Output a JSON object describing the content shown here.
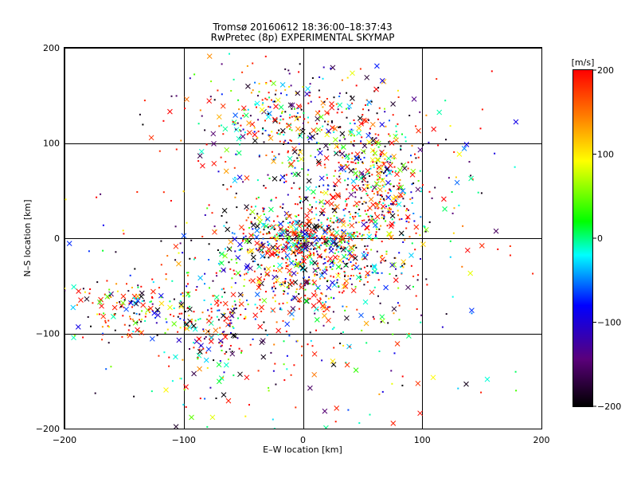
{
  "chart_data": {
    "type": "scatter",
    "title_lines": [
      "Tromsø 20160612 18:36:00–18:37:43",
      "RwPretec (8p) EXPERIMENTAL SKYMAP"
    ],
    "xlabel": "E–W location [km]",
    "ylabel": "N–S location [km]",
    "xlim": [
      -200,
      200
    ],
    "ylim": [
      -200,
      200
    ],
    "xticks": [
      -200,
      -100,
      0,
      100,
      200
    ],
    "yticks": [
      -200,
      -100,
      0,
      100,
      200
    ],
    "xtick_labels": [
      "−200",
      "−100",
      "0",
      "100",
      "200"
    ],
    "ytick_labels": [
      "−200",
      "−100",
      "0",
      "100",
      "200"
    ],
    "grid": true,
    "markers": [
      "dot",
      "x"
    ],
    "colorbar": {
      "label": "[m/s]",
      "range": [
        -200,
        200
      ],
      "ticks": [
        200,
        100,
        0,
        -100,
        -200
      ],
      "tick_labels": [
        "200",
        "100",
        "0",
        "−100",
        "−200"
      ],
      "colormap": [
        "#000000",
        "#5a007a",
        "#0000ff",
        "#00ffff",
        "#00ff00",
        "#ffff00",
        "#ff8000",
        "#ff0000"
      ]
    },
    "clusters": [
      {
        "x": 0,
        "y": 0,
        "sx": 28,
        "sy": 14,
        "n": 340
      },
      {
        "x": 0,
        "y": -30,
        "sx": 48,
        "sy": 32,
        "n": 620
      },
      {
        "x": -15,
        "y": 130,
        "sx": 45,
        "sy": 28,
        "n": 260
      },
      {
        "x": 60,
        "y": 65,
        "sx": 18,
        "sy": 28,
        "n": 200
      },
      {
        "x": -140,
        "y": -75,
        "sx": 30,
        "sy": 16,
        "n": 170
      },
      {
        "x": -75,
        "y": -95,
        "sx": 18,
        "sy": 22,
        "n": 120
      },
      {
        "x": 25,
        "y": 70,
        "sx": 45,
        "sy": 40,
        "n": 320
      },
      {
        "x": 70,
        "y": 25,
        "sx": 15,
        "sy": 12,
        "n": 60
      },
      {
        "x": 0,
        "y": -150,
        "sx": 80,
        "sy": 40,
        "n": 80
      },
      {
        "x": 0,
        "y": 0,
        "sx": 110,
        "sy": 90,
        "n": 260
      }
    ]
  }
}
